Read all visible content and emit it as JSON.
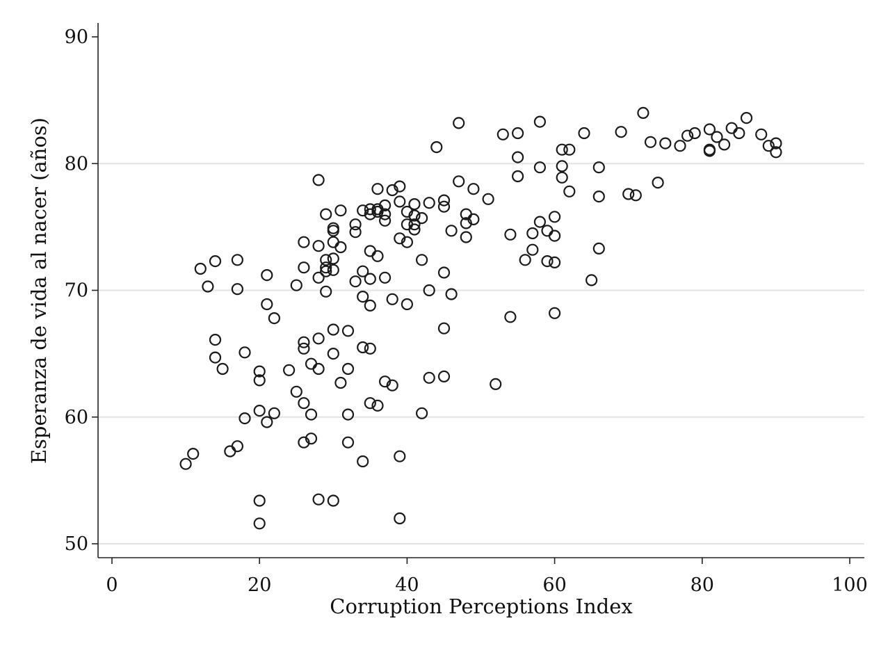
{
  "chart_data": {
    "type": "scatter",
    "title": "",
    "xlabel": "Corruption Perceptions Index",
    "ylabel": "Esperanza de vida al nacer (años)",
    "xlim": [
      0,
      100
    ],
    "ylim": [
      50,
      90
    ],
    "x_ticks": [
      0,
      20,
      40,
      60,
      80,
      100
    ],
    "y_ticks": [
      50,
      60,
      70,
      80,
      90
    ],
    "y_grid": true,
    "marker": "hollow-circle",
    "marker_color": "#1a1a1a",
    "grid_color": "#e3e3e3",
    "points": [
      [
        10,
        56.3
      ],
      [
        11,
        57.1
      ],
      [
        12,
        71.7
      ],
      [
        13,
        70.3
      ],
      [
        14,
        72.3
      ],
      [
        14,
        66.1
      ],
      [
        14,
        64.7
      ],
      [
        15,
        63.8
      ],
      [
        16,
        57.3
      ],
      [
        17,
        57.7
      ],
      [
        17,
        72.4
      ],
      [
        17,
        70.1
      ],
      [
        18,
        65.1
      ],
      [
        18,
        59.9
      ],
      [
        20,
        63.6
      ],
      [
        20,
        62.9
      ],
      [
        20,
        60.5
      ],
      [
        20,
        53.4
      ],
      [
        20,
        51.6
      ],
      [
        21,
        71.2
      ],
      [
        21,
        68.9
      ],
      [
        21,
        59.6
      ],
      [
        22,
        67.8
      ],
      [
        22,
        60.3
      ],
      [
        24,
        63.7
      ],
      [
        25,
        70.4
      ],
      [
        25,
        62.0
      ],
      [
        26,
        73.8
      ],
      [
        26,
        71.8
      ],
      [
        26,
        65.9
      ],
      [
        26,
        65.4
      ],
      [
        26,
        61.1
      ],
      [
        26,
        58.0
      ],
      [
        27,
        64.2
      ],
      [
        27,
        60.2
      ],
      [
        27,
        58.3
      ],
      [
        28,
        78.7
      ],
      [
        28,
        73.5
      ],
      [
        28,
        71.0
      ],
      [
        28,
        66.2
      ],
      [
        28,
        63.8
      ],
      [
        28,
        53.5
      ],
      [
        29,
        76.0
      ],
      [
        29,
        72.4
      ],
      [
        29,
        71.8
      ],
      [
        29,
        71.5
      ],
      [
        29,
        69.9
      ],
      [
        30,
        74.9
      ],
      [
        30,
        74.7
      ],
      [
        30,
        73.8
      ],
      [
        30,
        72.5
      ],
      [
        30,
        71.6
      ],
      [
        30,
        66.9
      ],
      [
        30,
        65.0
      ],
      [
        30,
        53.4
      ],
      [
        31,
        76.3
      ],
      [
        31,
        73.4
      ],
      [
        31,
        62.7
      ],
      [
        32,
        66.8
      ],
      [
        32,
        63.8
      ],
      [
        32,
        60.2
      ],
      [
        32,
        58.0
      ],
      [
        33,
        75.2
      ],
      [
        33,
        74.6
      ],
      [
        33,
        70.7
      ],
      [
        34,
        76.3
      ],
      [
        34,
        71.5
      ],
      [
        34,
        69.5
      ],
      [
        34,
        65.5
      ],
      [
        34,
        56.5
      ],
      [
        35,
        76.4
      ],
      [
        35,
        76.0
      ],
      [
        35,
        73.1
      ],
      [
        35,
        70.9
      ],
      [
        35,
        68.8
      ],
      [
        35,
        65.4
      ],
      [
        35,
        61.1
      ],
      [
        36,
        78.0
      ],
      [
        36,
        76.4
      ],
      [
        36,
        76.2
      ],
      [
        36,
        72.7
      ],
      [
        36,
        60.9
      ],
      [
        37,
        76.7
      ],
      [
        37,
        76.0
      ],
      [
        37,
        75.5
      ],
      [
        37,
        71.0
      ],
      [
        37,
        62.8
      ],
      [
        38,
        77.9
      ],
      [
        38,
        69.3
      ],
      [
        38,
        62.5
      ],
      [
        39,
        78.2
      ],
      [
        39,
        77.0
      ],
      [
        39,
        74.1
      ],
      [
        39,
        56.9
      ],
      [
        39,
        52.0
      ],
      [
        40,
        76.2
      ],
      [
        40,
        75.2
      ],
      [
        40,
        73.8
      ],
      [
        40,
        68.9
      ],
      [
        41,
        76.8
      ],
      [
        41,
        75.9
      ],
      [
        41,
        75.2
      ],
      [
        41,
        74.8
      ],
      [
        42,
        75.7
      ],
      [
        42,
        72.4
      ],
      [
        42,
        60.3
      ],
      [
        43,
        76.9
      ],
      [
        43,
        70.0
      ],
      [
        43,
        63.1
      ],
      [
        44,
        81.3
      ],
      [
        45,
        77.1
      ],
      [
        45,
        76.6
      ],
      [
        45,
        71.4
      ],
      [
        45,
        67.0
      ],
      [
        45,
        63.2
      ],
      [
        46,
        74.7
      ],
      [
        46,
        69.7
      ],
      [
        47,
        83.2
      ],
      [
        47,
        78.6
      ],
      [
        48,
        76.0
      ],
      [
        48,
        75.3
      ],
      [
        48,
        74.2
      ],
      [
        49,
        78.0
      ],
      [
        49,
        75.6
      ],
      [
        51,
        77.2
      ],
      [
        52,
        62.6
      ],
      [
        53,
        82.3
      ],
      [
        54,
        74.4
      ],
      [
        54,
        67.9
      ],
      [
        55,
        82.4
      ],
      [
        55,
        80.5
      ],
      [
        55,
        79.0
      ],
      [
        56,
        72.4
      ],
      [
        57,
        74.5
      ],
      [
        57,
        73.2
      ],
      [
        58,
        83.3
      ],
      [
        58,
        79.7
      ],
      [
        58,
        75.4
      ],
      [
        59,
        74.7
      ],
      [
        59,
        72.3
      ],
      [
        60,
        75.8
      ],
      [
        60,
        74.3
      ],
      [
        60,
        72.2
      ],
      [
        60,
        68.2
      ],
      [
        61,
        81.1
      ],
      [
        61,
        79.8
      ],
      [
        61,
        78.9
      ],
      [
        62,
        81.1
      ],
      [
        62,
        77.8
      ],
      [
        64,
        82.4
      ],
      [
        65,
        70.8
      ],
      [
        66,
        79.7
      ],
      [
        66,
        77.4
      ],
      [
        66,
        73.3
      ],
      [
        69,
        82.5
      ],
      [
        70,
        77.6
      ],
      [
        71,
        77.5
      ],
      [
        72,
        84.0
      ],
      [
        73,
        81.7
      ],
      [
        74,
        78.5
      ],
      [
        75,
        81.6
      ],
      [
        77,
        81.4
      ],
      [
        78,
        82.2
      ],
      [
        79,
        82.4
      ],
      [
        81,
        82.7
      ],
      [
        81,
        81.1
      ],
      [
        81,
        81.0
      ],
      [
        82,
        82.1
      ],
      [
        83,
        81.5
      ],
      [
        84,
        82.8
      ],
      [
        85,
        82.4
      ],
      [
        86,
        83.6
      ],
      [
        88,
        82.3
      ],
      [
        89,
        81.4
      ],
      [
        90,
        81.6
      ],
      [
        90,
        80.9
      ]
    ]
  }
}
